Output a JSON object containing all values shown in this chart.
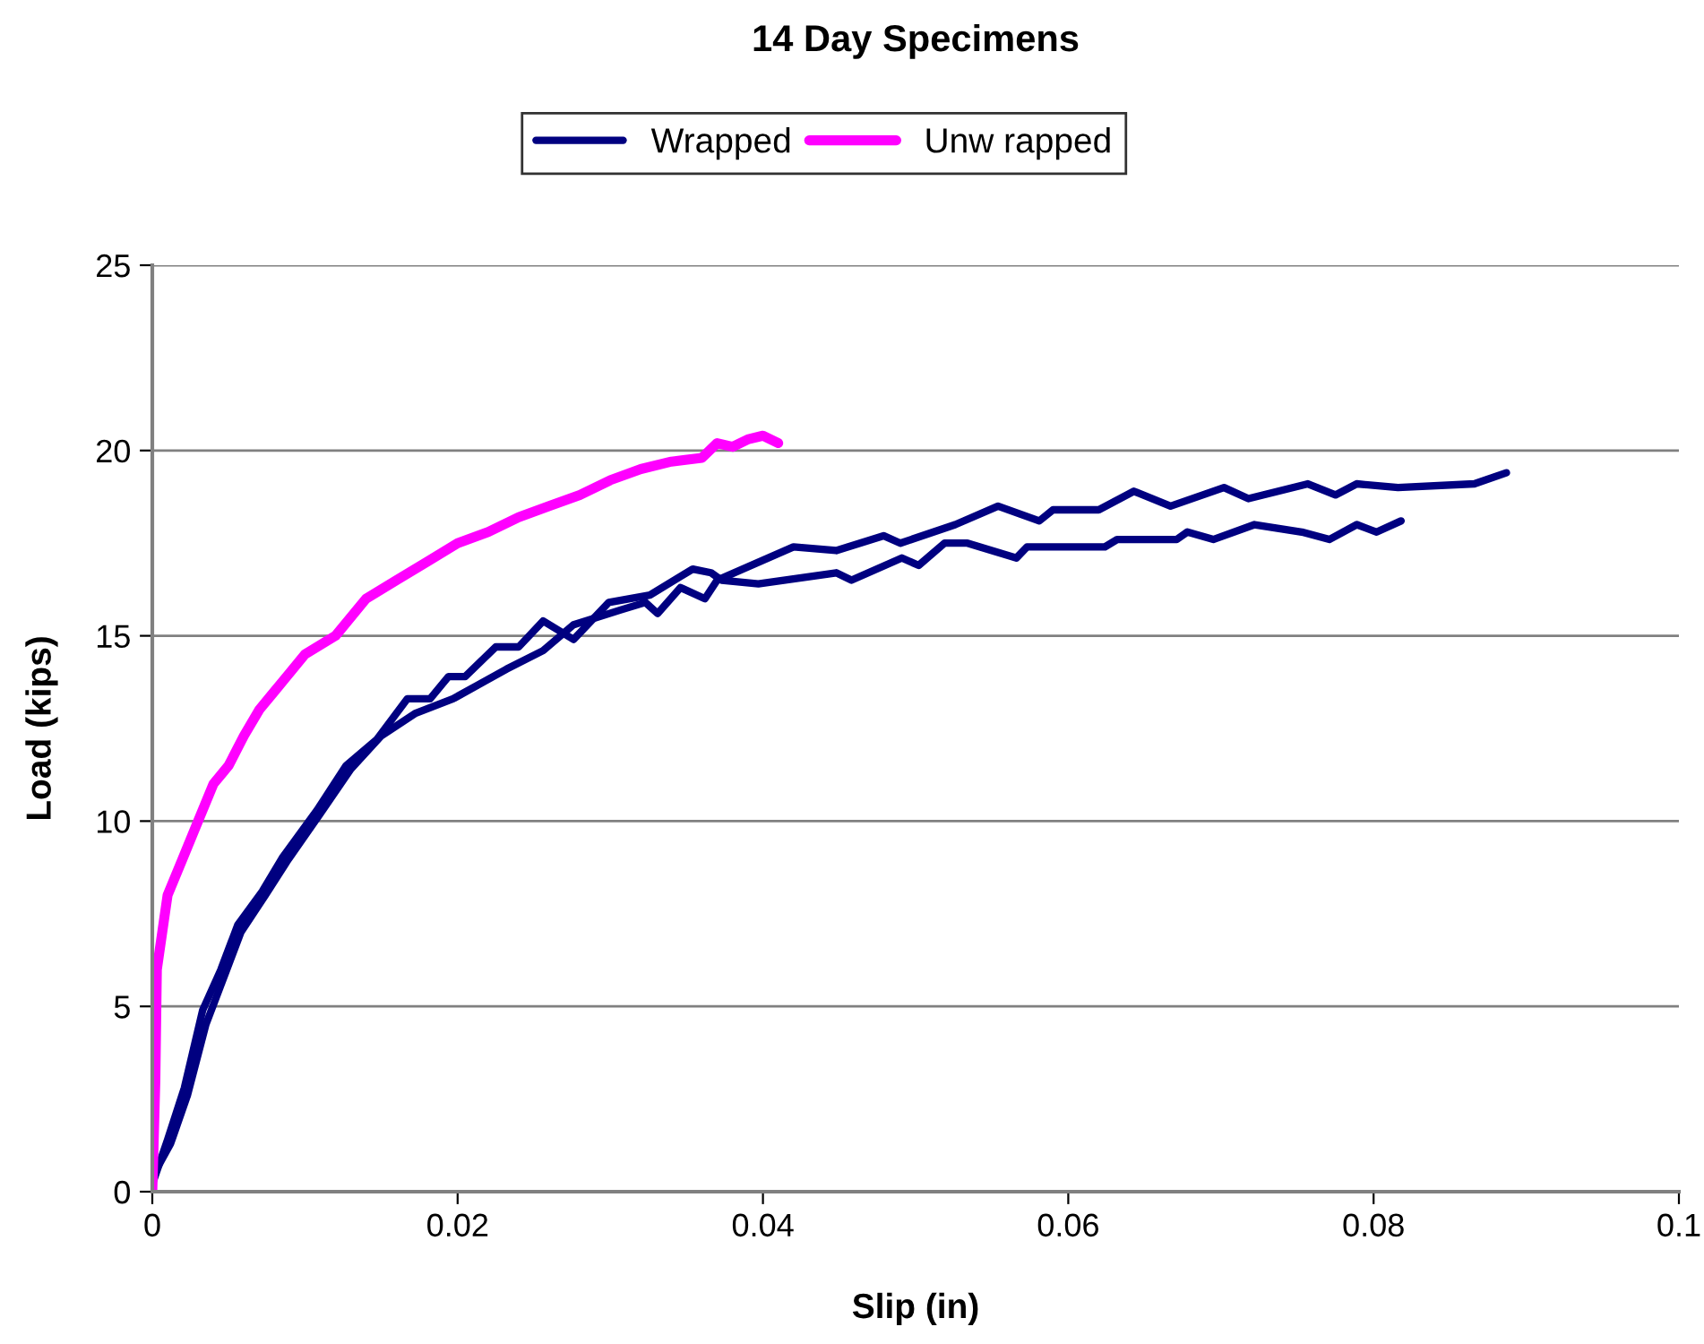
{
  "chart_data": {
    "type": "line",
    "title": "14 Day Specimens",
    "xlabel": "Slip (in)",
    "ylabel": "Load (kips)",
    "xlim": [
      0,
      0.1
    ],
    "ylim": [
      0,
      25
    ],
    "xticks": [
      0,
      0.02,
      0.04,
      0.06,
      0.08,
      0.1
    ],
    "yticks": [
      0,
      5,
      10,
      15,
      20,
      25
    ],
    "grid": "y",
    "legend": "top",
    "marker": "none",
    "line_style": "solid",
    "series": [
      {
        "name": "Wrapped",
        "color": "#000080",
        "x": [
          0,
          0.001,
          0.0021,
          0.0033,
          0.0045,
          0.0056,
          0.0072,
          0.0085,
          0.0108,
          0.0127,
          0.0147,
          0.0167,
          0.0182,
          0.0194,
          0.0205,
          0.0225,
          0.024,
          0.0256,
          0.0276,
          0.0299,
          0.0326,
          0.0354,
          0.0366,
          0.0373,
          0.0397,
          0.0448,
          0.0458,
          0.0491,
          0.0502,
          0.0519,
          0.0534,
          0.0566,
          0.0573,
          0.0624,
          0.0632,
          0.0671,
          0.0678,
          0.0695,
          0.0722,
          0.0753,
          0.0771,
          0.0789,
          0.0802,
          0.0818
        ],
        "values": [
          0.2,
          1.4,
          2.8,
          4.9,
          6.0,
          7.2,
          8.1,
          9.0,
          10.3,
          11.5,
          12.2,
          13.3,
          13.3,
          13.9,
          13.9,
          14.7,
          14.7,
          15.4,
          14.9,
          15.9,
          16.1,
          16.8,
          16.7,
          16.5,
          16.4,
          16.7,
          16.5,
          17.1,
          16.9,
          17.5,
          17.5,
          17.1,
          17.4,
          17.4,
          17.6,
          17.6,
          17.8,
          17.6,
          18.0,
          17.8,
          17.6,
          18.0,
          17.8,
          18.1
        ]
      },
      {
        "color": "#000080",
        "x": [
          0,
          0.0012,
          0.0023,
          0.0035,
          0.0047,
          0.0058,
          0.0074,
          0.0088,
          0.011,
          0.013,
          0.015,
          0.0172,
          0.0197,
          0.0232,
          0.0256,
          0.0276,
          0.0307,
          0.0323,
          0.0331,
          0.0346,
          0.0362,
          0.037,
          0.042,
          0.0448,
          0.0479,
          0.049,
          0.0526,
          0.0554,
          0.0581,
          0.059,
          0.062,
          0.0643,
          0.0667,
          0.0702,
          0.0718,
          0.0757,
          0.0775,
          0.0789,
          0.0816,
          0.0866,
          0.0887
        ],
        "values": [
          0.4,
          1.3,
          2.6,
          4.5,
          5.8,
          7.0,
          8.0,
          8.9,
          10.2,
          11.4,
          12.3,
          12.9,
          13.3,
          14.1,
          14.6,
          15.3,
          15.7,
          15.9,
          15.6,
          16.3,
          16.0,
          16.5,
          17.4,
          17.3,
          17.7,
          17.5,
          18.0,
          18.5,
          18.1,
          18.4,
          18.4,
          18.9,
          18.5,
          19.0,
          18.7,
          19.1,
          18.8,
          19.1,
          19.0,
          19.1,
          19.4
        ]
      },
      {
        "name": "Unw rapped",
        "color": "#ff00ff",
        "x": [
          0,
          0.0002,
          0.0003,
          0.001,
          0.002,
          0.003,
          0.004,
          0.005,
          0.006,
          0.007,
          0.008,
          0.009,
          0.01,
          0.012,
          0.014,
          0.016,
          0.018,
          0.02,
          0.022,
          0.024,
          0.026,
          0.028,
          0.03,
          0.032,
          0.034,
          0.036,
          0.037,
          0.038,
          0.039,
          0.04,
          0.041
        ],
        "values": [
          0,
          3,
          6,
          8,
          9,
          10,
          11,
          11.5,
          12.3,
          13,
          13.5,
          14,
          14.5,
          15,
          16,
          16.5,
          17,
          17.5,
          17.8,
          18.2,
          18.5,
          18.8,
          19.2,
          19.5,
          19.7,
          19.8,
          20.2,
          20.1,
          20.3,
          20.4,
          20.2
        ]
      }
    ]
  }
}
